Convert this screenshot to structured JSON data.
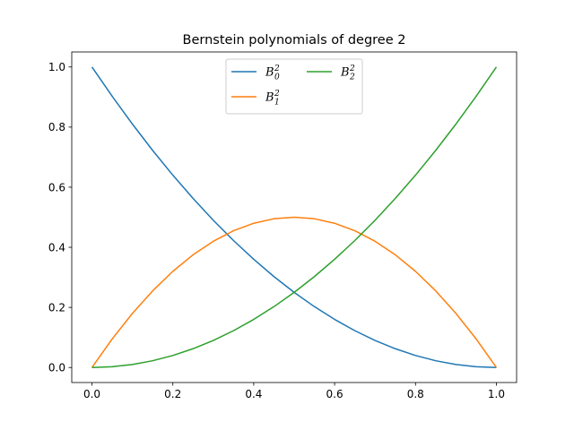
{
  "chart_data": {
    "type": "line",
    "title": "Bernstein polynomials of degree 2",
    "xlabel": "",
    "ylabel": "",
    "xlim": [
      -0.05,
      1.05
    ],
    "ylim": [
      -0.05,
      1.05
    ],
    "x_ticks": [
      0.0,
      0.2,
      0.4,
      0.6,
      0.8,
      1.0
    ],
    "y_ticks": [
      0.0,
      0.2,
      0.4,
      0.6,
      0.8,
      1.0
    ],
    "x_tick_labels": [
      "0.0",
      "0.2",
      "0.4",
      "0.6",
      "0.8",
      "1.0"
    ],
    "y_tick_labels": [
      "0.0",
      "0.2",
      "0.4",
      "0.6",
      "0.8",
      "1.0"
    ],
    "grid": false,
    "legend": {
      "placement": "upper center",
      "columns": 2
    },
    "x": [
      0.0,
      0.05,
      0.1,
      0.15,
      0.2,
      0.25,
      0.3,
      0.35,
      0.4,
      0.45,
      0.5,
      0.55,
      0.6,
      0.65,
      0.7,
      0.75,
      0.8,
      0.85,
      0.9,
      0.95,
      1.0
    ],
    "series": [
      {
        "name": "B",
        "sup": "2",
        "sub": "0",
        "color": "#1f77b4",
        "values": [
          1.0,
          0.9025,
          0.81,
          0.7225,
          0.64,
          0.5625,
          0.49,
          0.4225,
          0.36,
          0.3025,
          0.25,
          0.2025,
          0.16,
          0.1225,
          0.09,
          0.0625,
          0.04,
          0.0225,
          0.01,
          0.0025,
          0.0
        ]
      },
      {
        "name": "B",
        "sup": "2",
        "sub": "1",
        "color": "#ff7f0e",
        "values": [
          0.0,
          0.095,
          0.18,
          0.255,
          0.32,
          0.375,
          0.42,
          0.455,
          0.48,
          0.495,
          0.5,
          0.495,
          0.48,
          0.455,
          0.42,
          0.375,
          0.32,
          0.255,
          0.18,
          0.095,
          0.0
        ]
      },
      {
        "name": "B",
        "sup": "2",
        "sub": "2",
        "color": "#2ca02c",
        "values": [
          0.0,
          0.0025,
          0.01,
          0.0225,
          0.04,
          0.0625,
          0.09,
          0.1225,
          0.16,
          0.2025,
          0.25,
          0.3025,
          0.36,
          0.4225,
          0.49,
          0.5625,
          0.64,
          0.7225,
          0.81,
          0.9025,
          1.0
        ]
      }
    ]
  }
}
